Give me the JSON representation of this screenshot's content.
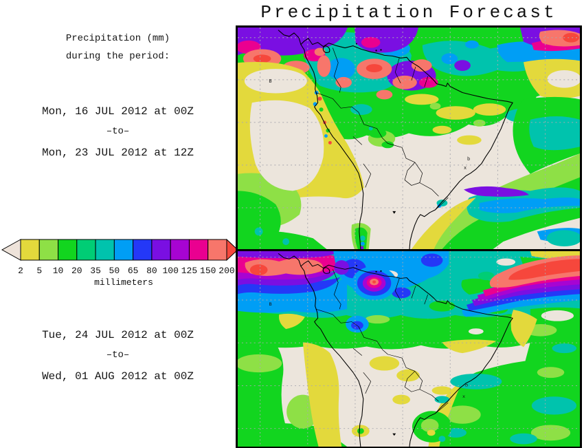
{
  "title": "Precipitation Forecast",
  "sidebar": {
    "heading_line1": "Precipitation (mm)",
    "heading_line2": "during the period:",
    "period1": {
      "from": "Mon, 16 JUL 2012 at 00Z",
      "separator": "–to–",
      "to": "Mon, 23 JUL 2012 at 12Z"
    },
    "period2": {
      "from": "Tue, 24 JUL 2012 at 00Z",
      "separator": "–to–",
      "to": "Wed, 01 AUG 2012 at 00Z"
    }
  },
  "colorbar": {
    "unit_label": "millimeters",
    "tick_values": [
      "2",
      "5",
      "10",
      "20",
      "35",
      "50",
      "65",
      "80",
      "100",
      "125",
      "150",
      "200"
    ],
    "cell_colors": [
      "#e3d93c",
      "#8ee046",
      "#12d51f",
      "#00cd75",
      "#00c3ad",
      "#009ef5",
      "#2438f7",
      "#7a0fe2",
      "#a704d2",
      "#ea0090",
      "#f7766b"
    ],
    "underflow_color": "#eee3da",
    "overflow_color": "#f6473c"
  },
  "map": {
    "marks": {
      "island": "B",
      "b": "b",
      "x": "x"
    }
  },
  "palette": {
    "cream": "#ece5dc",
    "yellow": "#e3d93c",
    "ygreen": "#8ee046",
    "green": "#12d51f",
    "sgreen": "#00cd75",
    "teal": "#00c3ad",
    "azure": "#009ef5",
    "blue": "#2438f7",
    "violet": "#7a0fe2",
    "purple": "#a704d2",
    "magenta": "#ea0090",
    "salmon": "#f7766b",
    "red": "#f6473c",
    "grid": "#a9a9b0"
  }
}
